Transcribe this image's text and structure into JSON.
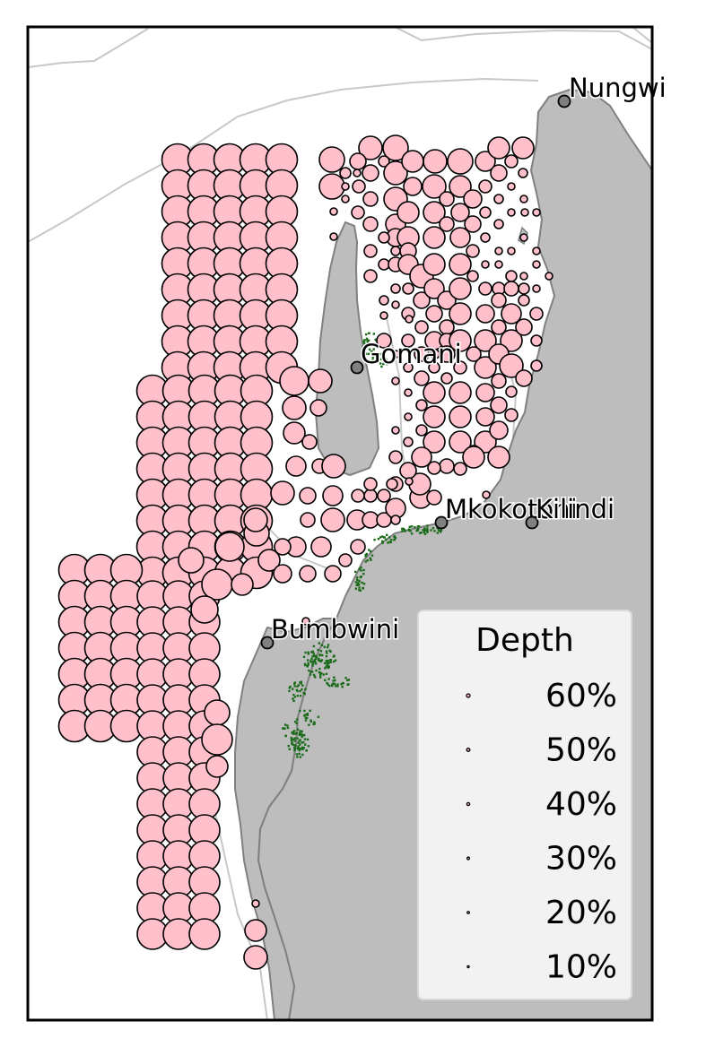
{
  "map": {
    "colors": {
      "land": "#bdbdbd",
      "land_outline": "#808080",
      "water": "#ffffff",
      "boundaries": "#c8c8c8",
      "bubble_fill": "#ffc0cb",
      "bubble_stroke": "#000000",
      "seagrass": "#1a6b1a",
      "town_marker": "#808080",
      "frame": "#000000"
    },
    "places": [
      {
        "name": "Nungwi"
      },
      {
        "name": "Gomani"
      },
      {
        "name": "Mkokotoni"
      },
      {
        "name": "Kilindi"
      },
      {
        "name": "Bumbwini"
      }
    ]
  },
  "legend": {
    "title": "Depth",
    "items": [
      {
        "label": "60%",
        "value": 60
      },
      {
        "label": "50%",
        "value": 50
      },
      {
        "label": "40%",
        "value": 40
      },
      {
        "label": "30%",
        "value": 30
      },
      {
        "label": "20%",
        "value": 20
      },
      {
        "label": "10%",
        "value": 10
      }
    ]
  }
}
